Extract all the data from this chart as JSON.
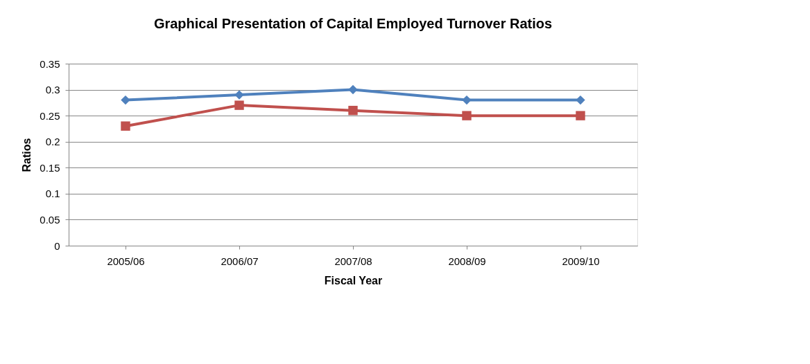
{
  "chart_data": {
    "type": "line",
    "title": "Graphical Presentation of Capital Employed Turnover Ratios",
    "xlabel": "Fiscal Year",
    "ylabel": "Ratios",
    "categories": [
      "2005/06",
      "2006/07",
      "2007/08",
      "2008/09",
      "2009/10"
    ],
    "series": [
      {
        "color": "#4f81bd",
        "marker": "diamond",
        "values": [
          0.28,
          0.29,
          0.3,
          0.28,
          0.28
        ]
      },
      {
        "color": "#c0504d",
        "marker": "square",
        "values": [
          0.23,
          0.27,
          0.26,
          0.25,
          0.25
        ]
      }
    ],
    "ylim": [
      0,
      0.35
    ],
    "yticks": [
      0,
      0.05,
      0.1,
      0.15,
      0.2,
      0.25,
      0.3,
      0.35
    ],
    "grid": "y",
    "line_style": "solid"
  }
}
